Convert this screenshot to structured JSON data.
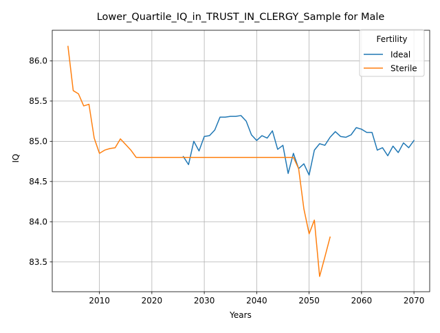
{
  "chart_data": {
    "type": "line",
    "title": "Lower_Quartile_IQ_in_TRUST_IN_CLERGY_Sample for Male",
    "xlabel": "Years",
    "ylabel": "IQ",
    "xlim": [
      2001,
      2073
    ],
    "ylim": [
      83.13,
      86.38
    ],
    "xticks": [
      2010,
      2020,
      2030,
      2040,
      2050,
      2060,
      2070
    ],
    "yticks": [
      83.5,
      84.0,
      84.5,
      85.0,
      85.5,
      86.0
    ],
    "ytick_labels": [
      "83.5",
      "84.0",
      "84.5",
      "85.0",
      "85.5",
      "86.0"
    ],
    "grid": true,
    "legend": {
      "title": "Fertility",
      "placement": "top-right"
    },
    "series": [
      {
        "name": "Ideal",
        "color": "#1f77b4",
        "x": [
          2026,
          2027,
          2028,
          2029,
          2030,
          2031,
          2032,
          2033,
          2034,
          2035,
          2036,
          2037,
          2038,
          2039,
          2040,
          2041,
          2042,
          2043,
          2044,
          2045,
          2046,
          2047,
          2048,
          2049,
          2050,
          2051,
          2052,
          2053,
          2054,
          2055,
          2056,
          2057,
          2058,
          2059,
          2060,
          2061,
          2062,
          2063,
          2064,
          2065,
          2066,
          2067,
          2068,
          2069,
          2070
        ],
        "y": [
          84.81,
          84.71,
          85.0,
          84.88,
          85.06,
          85.07,
          85.14,
          85.3,
          85.3,
          85.31,
          85.31,
          85.32,
          85.25,
          85.08,
          85.01,
          85.07,
          85.04,
          85.13,
          84.9,
          84.95,
          84.6,
          84.85,
          84.66,
          84.72,
          84.58,
          84.89,
          84.97,
          84.95,
          85.05,
          85.12,
          85.06,
          85.05,
          85.08,
          85.17,
          85.15,
          85.11,
          85.11,
          84.89,
          84.92,
          84.82,
          84.94,
          84.86,
          84.98,
          84.92,
          85.01
        ]
      },
      {
        "name": "Sterile",
        "color": "#ff7f0e",
        "x": [
          2004,
          2005,
          2006,
          2007,
          2008,
          2009,
          2010,
          2011,
          2012,
          2013,
          2014,
          2015,
          2016,
          2017,
          2018,
          2019,
          2020,
          2021,
          2022,
          2023,
          2024,
          2025,
          2026,
          2027,
          2028,
          2029,
          2030,
          2031,
          2032,
          2033,
          2034,
          2035,
          2036,
          2037,
          2038,
          2039,
          2040,
          2041,
          2042,
          2043,
          2044,
          2045,
          2046,
          2047,
          2048,
          2049,
          2050,
          2051,
          2052,
          2053,
          2054
        ],
        "y": [
          86.18,
          85.63,
          85.59,
          85.44,
          85.46,
          85.04,
          84.85,
          84.89,
          84.91,
          84.92,
          85.03,
          84.96,
          84.89,
          84.8,
          84.8,
          84.8,
          84.8,
          84.8,
          84.8,
          84.8,
          84.8,
          84.8,
          84.8,
          84.8,
          84.8,
          84.8,
          84.8,
          84.8,
          84.8,
          84.8,
          84.8,
          84.8,
          84.8,
          84.8,
          84.8,
          84.8,
          84.8,
          84.8,
          84.8,
          84.8,
          84.8,
          84.8,
          84.8,
          84.8,
          84.66,
          84.16,
          83.85,
          84.02,
          83.32,
          83.56,
          83.81
        ]
      }
    ]
  }
}
